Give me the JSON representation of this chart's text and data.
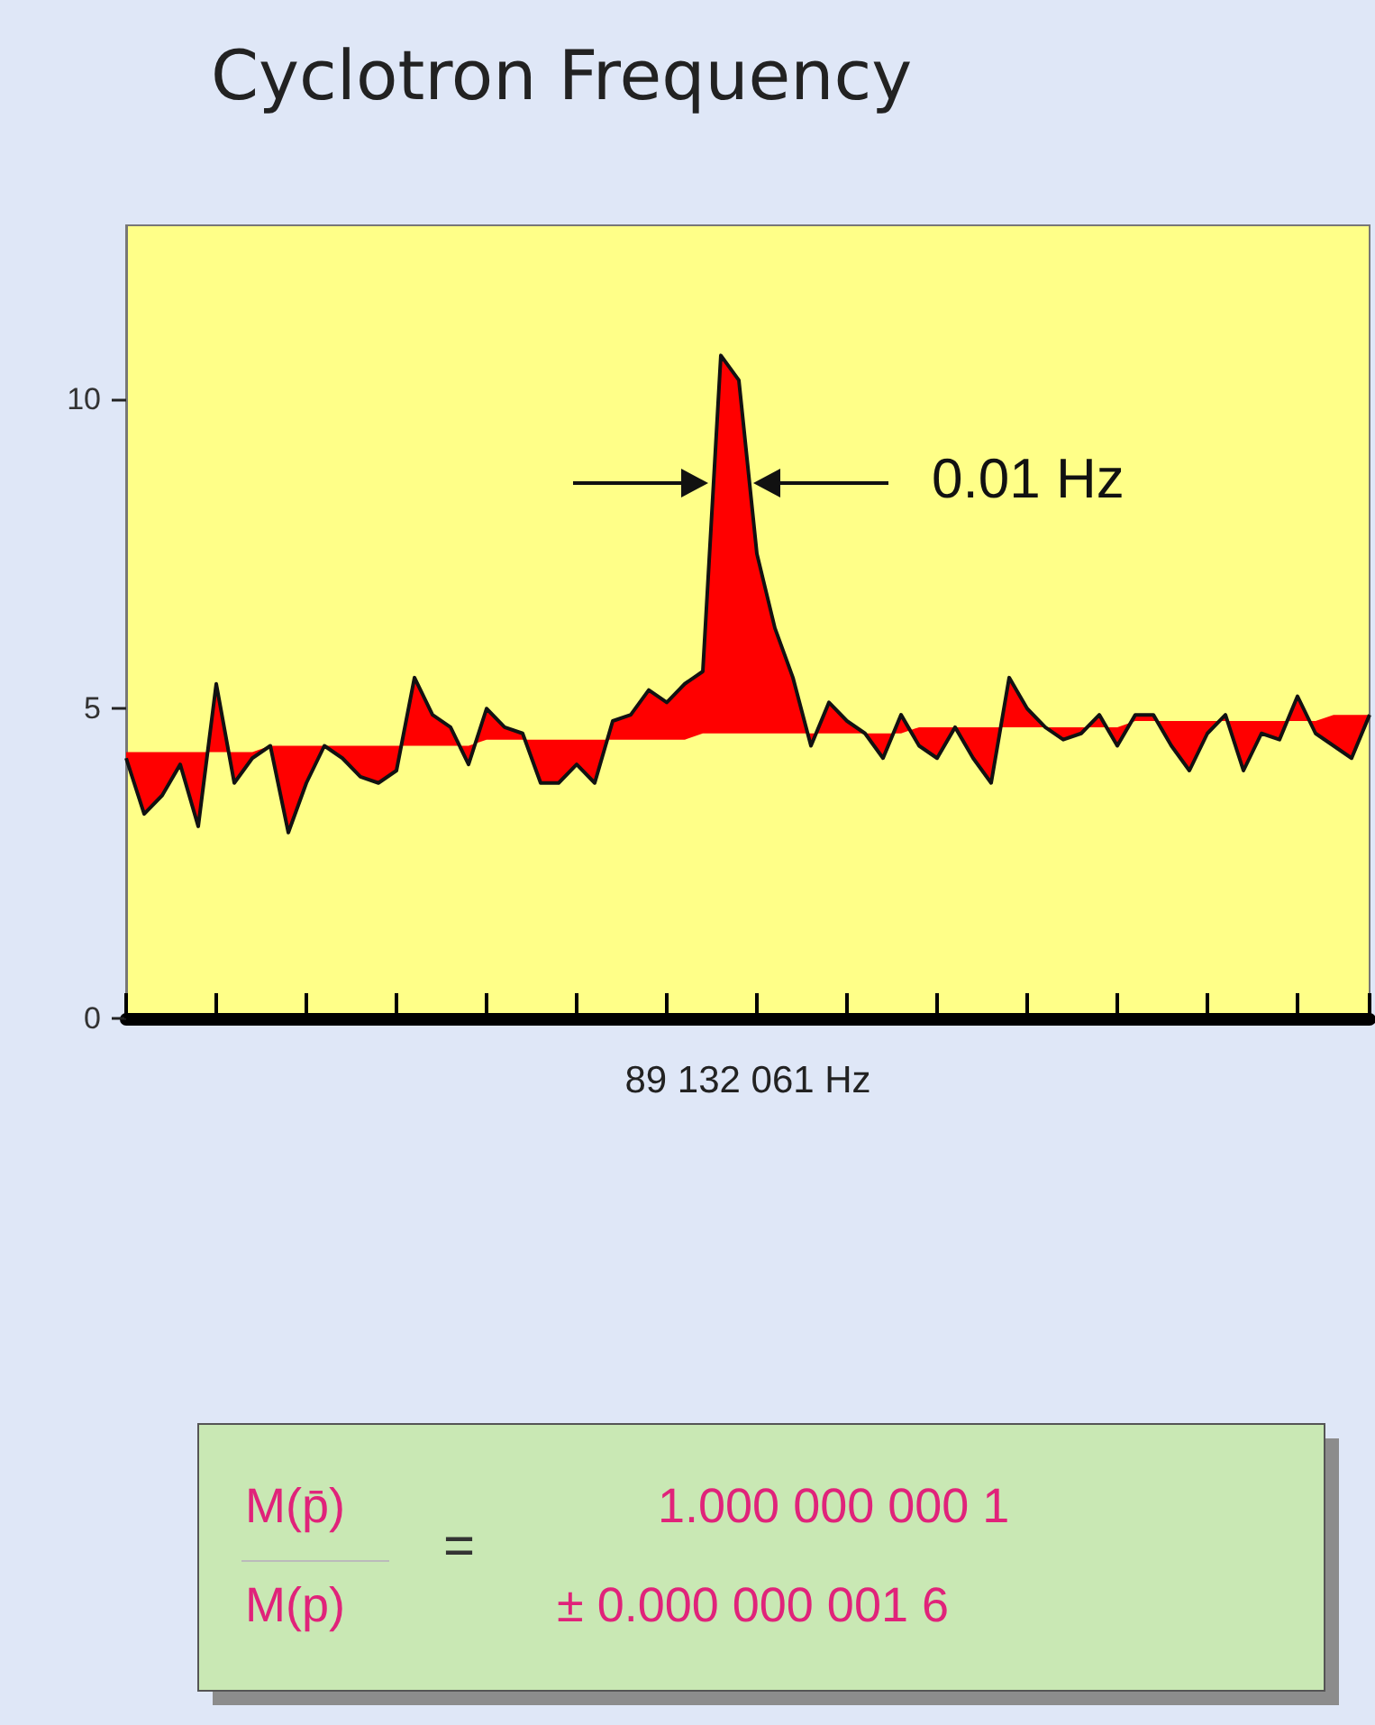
{
  "chart_data": {
    "type": "line",
    "title": "Cyclotron Frequency",
    "xlabel": "89 132 061 Hz",
    "categories": [
      null,
      null,
      null,
      null,
      null,
      null,
      null,
      null,
      null,
      null,
      null,
      null,
      null,
      null,
      null,
      null,
      null,
      null,
      null,
      null,
      null,
      null,
      null,
      null,
      null,
      null,
      null,
      null,
      null,
      null,
      null,
      null,
      null,
      null,
      null,
      null,
      null,
      null,
      null,
      null,
      null,
      null,
      null,
      null,
      null,
      null,
      null,
      null,
      null,
      null,
      null,
      null,
      null,
      null,
      null,
      null,
      null,
      null,
      null,
      null,
      null,
      null,
      null,
      null,
      null,
      null,
      null,
      null,
      null,
      null
    ],
    "series": [
      {
        "color": "#111111",
        "values": [
          4.2,
          3.3,
          3.6,
          4.1,
          3.1,
          5.4,
          3.8,
          4.2,
          4.4,
          3.0,
          3.8,
          4.4,
          4.2,
          3.9,
          3.8,
          4.0,
          5.5,
          4.9,
          4.7,
          4.1,
          5.0,
          4.7,
          4.6,
          3.8,
          3.8,
          4.1,
          3.8,
          4.8,
          4.9,
          5.3,
          5.1,
          5.4,
          5.6,
          10.7,
          10.3,
          7.5,
          6.3,
          5.5,
          4.4,
          5.1,
          4.8,
          4.6,
          4.2,
          4.9,
          4.4,
          4.2,
          4.7,
          4.2,
          3.8,
          5.5,
          5.0,
          4.7,
          4.5,
          4.6,
          4.9,
          4.4,
          4.9,
          4.9,
          4.4,
          4.0,
          4.6,
          4.9,
          4.0,
          4.6,
          4.5,
          5.2,
          4.6,
          4.4,
          4.2,
          4.9
        ],
        "lower": [
          4.3,
          4.3,
          4.3,
          4.3,
          4.3,
          4.3,
          4.3,
          4.3,
          4.4,
          4.4,
          4.4,
          4.4,
          4.4,
          4.4,
          4.4,
          4.4,
          4.4,
          4.4,
          4.4,
          4.4,
          4.5,
          4.5,
          4.5,
          4.5,
          4.5,
          4.5,
          4.5,
          4.5,
          4.5,
          4.5,
          4.5,
          4.5,
          4.6,
          4.6,
          4.6,
          4.6,
          4.6,
          4.6,
          4.6,
          4.6,
          4.6,
          4.6,
          4.6,
          4.6,
          4.7,
          4.7,
          4.7,
          4.7,
          4.7,
          4.7,
          4.7,
          4.7,
          4.7,
          4.7,
          4.7,
          4.7,
          4.8,
          4.8,
          4.8,
          4.8,
          4.8,
          4.8,
          4.8,
          4.8,
          4.8,
          4.8,
          4.8,
          4.9,
          4.9,
          4.9
        ],
        "upper": [
          4.2,
          3.3,
          3.6,
          4.1,
          3.1,
          5.4,
          3.8,
          4.2,
          4.4,
          3.0,
          3.8,
          4.4,
          4.2,
          3.9,
          3.8,
          4.0,
          5.5,
          4.9,
          4.7,
          4.1,
          5.0,
          4.7,
          4.6,
          3.8,
          3.8,
          4.1,
          3.8,
          4.8,
          4.9,
          5.3,
          5.1,
          5.4,
          5.6,
          10.7,
          10.3,
          7.5,
          6.3,
          5.5,
          4.4,
          5.1,
          4.8,
          4.6,
          4.2,
          4.9,
          4.4,
          4.2,
          4.7,
          4.2,
          3.8,
          5.5,
          5.0,
          4.7,
          4.5,
          4.6,
          4.9,
          4.4,
          4.9,
          4.9,
          4.4,
          4.0,
          4.6,
          4.9,
          4.0,
          4.6,
          4.5,
          5.2,
          4.6,
          4.4,
          4.2,
          4.9
        ]
      }
    ],
    "ylim": [
      0,
      12.8
    ],
    "yticks": [
      0,
      5,
      10
    ],
    "tick_labels": "y",
    "grid": false,
    "annotations": [
      "0.01 Hz",
      "M(p̄)",
      "M(p)",
      "=",
      "1.000 000 000 1",
      "± 0.000 000 001 6"
    ]
  }
}
